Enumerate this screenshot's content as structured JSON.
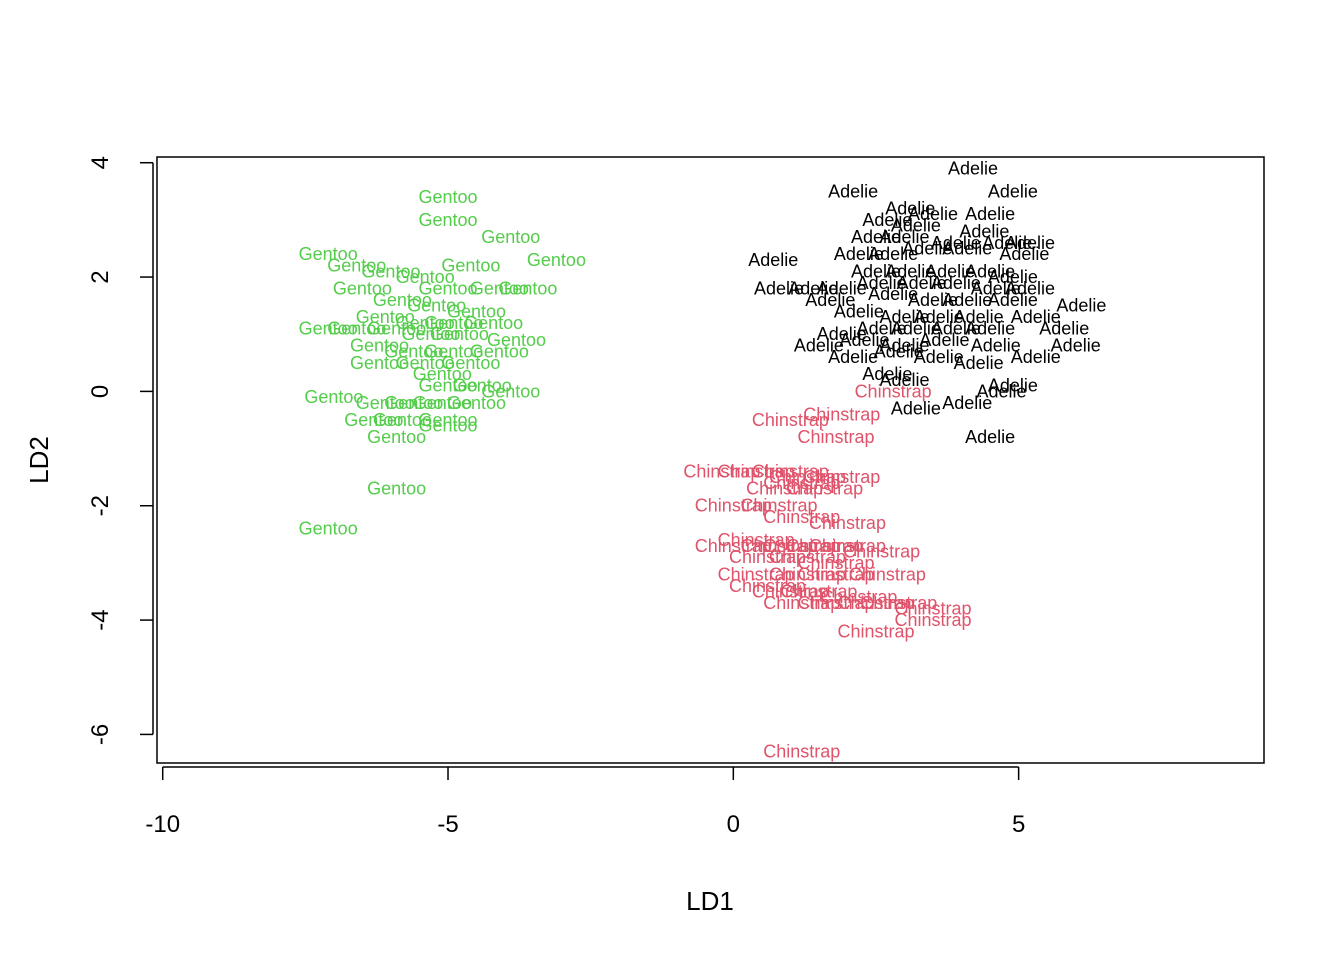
{
  "chart_data": {
    "type": "scatter",
    "title": "",
    "xlabel": "LD1",
    "ylabel": "LD2",
    "xlim": [
      -10.1,
      9.3
    ],
    "ylim": [
      -6.5,
      4.1
    ],
    "x_ticks": [
      -10,
      -5,
      0,
      5
    ],
    "y_ticks": [
      -6,
      -4,
      -2,
      0,
      2,
      4
    ],
    "x_tick_labels": [
      "-10",
      "-5",
      "0",
      "5"
    ],
    "y_tick_labels": [
      "-6",
      "-4",
      "-2",
      "0",
      "2",
      "4"
    ],
    "grid": false,
    "legend": "none",
    "series": [
      {
        "label": "Adelie",
        "color": "#000000",
        "points": [
          [
            4.2,
            3.9
          ],
          [
            2.1,
            3.5
          ],
          [
            4.9,
            3.5
          ],
          [
            3.1,
            3.2
          ],
          [
            3.5,
            3.1
          ],
          [
            4.5,
            3.1
          ],
          [
            2.7,
            3.0
          ],
          [
            3.2,
            2.9
          ],
          [
            4.4,
            2.8
          ],
          [
            2.5,
            2.7
          ],
          [
            3.0,
            2.7
          ],
          [
            3.9,
            2.6
          ],
          [
            4.8,
            2.6
          ],
          [
            5.2,
            2.6
          ],
          [
            0.7,
            2.3
          ],
          [
            2.2,
            2.4
          ],
          [
            2.8,
            2.4
          ],
          [
            3.4,
            2.5
          ],
          [
            4.1,
            2.5
          ],
          [
            5.1,
            2.4
          ],
          [
            2.5,
            2.1
          ],
          [
            3.1,
            2.1
          ],
          [
            3.8,
            2.1
          ],
          [
            4.5,
            2.1
          ],
          [
            4.9,
            2.0
          ],
          [
            1.4,
            1.8
          ],
          [
            1.9,
            1.8
          ],
          [
            2.6,
            1.9
          ],
          [
            3.3,
            1.9
          ],
          [
            3.9,
            1.9
          ],
          [
            4.6,
            1.8
          ],
          [
            5.2,
            1.8
          ],
          [
            0.8,
            1.8
          ],
          [
            1.7,
            1.6
          ],
          [
            2.8,
            1.7
          ],
          [
            3.5,
            1.6
          ],
          [
            4.1,
            1.6
          ],
          [
            4.9,
            1.6
          ],
          [
            6.1,
            1.5
          ],
          [
            2.2,
            1.4
          ],
          [
            3.0,
            1.3
          ],
          [
            3.6,
            1.3
          ],
          [
            4.3,
            1.3
          ],
          [
            5.3,
            1.3
          ],
          [
            1.9,
            1.0
          ],
          [
            2.6,
            1.1
          ],
          [
            3.2,
            1.1
          ],
          [
            3.9,
            1.1
          ],
          [
            4.5,
            1.1
          ],
          [
            5.8,
            1.1
          ],
          [
            1.5,
            0.8
          ],
          [
            2.3,
            0.9
          ],
          [
            3.0,
            0.8
          ],
          [
            3.7,
            0.9
          ],
          [
            4.6,
            0.8
          ],
          [
            6.0,
            0.8
          ],
          [
            2.1,
            0.6
          ],
          [
            2.9,
            0.7
          ],
          [
            3.6,
            0.6
          ],
          [
            4.3,
            0.5
          ],
          [
            5.3,
            0.6
          ],
          [
            2.7,
            0.3
          ],
          [
            3.0,
            0.2
          ],
          [
            4.1,
            -0.2
          ],
          [
            4.7,
            0.0
          ],
          [
            4.9,
            0.1
          ],
          [
            3.2,
            -0.3
          ],
          [
            4.5,
            -0.8
          ]
        ]
      },
      {
        "label": "Gentoo",
        "color": "#54cd4b",
        "points": [
          [
            -5.0,
            3.4
          ],
          [
            -5.0,
            3.0
          ],
          [
            -3.9,
            2.7
          ],
          [
            -7.1,
            2.4
          ],
          [
            -3.1,
            2.3
          ],
          [
            -6.6,
            2.2
          ],
          [
            -4.6,
            2.2
          ],
          [
            -6.0,
            2.1
          ],
          [
            -5.4,
            2.0
          ],
          [
            -6.5,
            1.8
          ],
          [
            -5.0,
            1.8
          ],
          [
            -4.1,
            1.8
          ],
          [
            -3.6,
            1.8
          ],
          [
            -5.8,
            1.6
          ],
          [
            -5.2,
            1.5
          ],
          [
            -4.5,
            1.4
          ],
          [
            -6.1,
            1.3
          ],
          [
            -5.4,
            1.2
          ],
          [
            -4.9,
            1.2
          ],
          [
            -4.2,
            1.2
          ],
          [
            -7.1,
            1.1
          ],
          [
            -6.6,
            1.1
          ],
          [
            -5.9,
            1.1
          ],
          [
            -5.3,
            1.0
          ],
          [
            -4.8,
            1.0
          ],
          [
            -3.8,
            0.9
          ],
          [
            -6.2,
            0.8
          ],
          [
            -5.6,
            0.7
          ],
          [
            -4.9,
            0.7
          ],
          [
            -4.1,
            0.7
          ],
          [
            -6.2,
            0.5
          ],
          [
            -5.4,
            0.5
          ],
          [
            -4.6,
            0.5
          ],
          [
            -5.1,
            0.3
          ],
          [
            -4.4,
            0.1
          ],
          [
            -5.0,
            0.1
          ],
          [
            -3.9,
            0.0
          ],
          [
            -7.0,
            -0.1
          ],
          [
            -6.1,
            -0.2
          ],
          [
            -5.6,
            -0.2
          ],
          [
            -5.1,
            -0.2
          ],
          [
            -4.5,
            -0.2
          ],
          [
            -6.3,
            -0.5
          ],
          [
            -5.8,
            -0.5
          ],
          [
            -5.0,
            -0.5
          ],
          [
            -5.0,
            -0.6
          ],
          [
            -5.9,
            -0.8
          ],
          [
            -5.9,
            -1.7
          ],
          [
            -7.1,
            -2.4
          ]
        ]
      },
      {
        "label": "Chinstrap",
        "color": "#df536b",
        "points": [
          [
            2.8,
            0.0
          ],
          [
            1.9,
            -0.4
          ],
          [
            1.0,
            -0.5
          ],
          [
            1.8,
            -0.8
          ],
          [
            -0.2,
            -1.4
          ],
          [
            0.4,
            -1.4
          ],
          [
            1.0,
            -1.4
          ],
          [
            1.3,
            -1.5
          ],
          [
            1.9,
            -1.5
          ],
          [
            1.2,
            -1.6
          ],
          [
            0.9,
            -1.7
          ],
          [
            1.6,
            -1.7
          ],
          [
            0.0,
            -2.0
          ],
          [
            0.8,
            -2.0
          ],
          [
            1.2,
            -2.2
          ],
          [
            2.0,
            -2.3
          ],
          [
            0.4,
            -2.6
          ],
          [
            0.0,
            -2.7
          ],
          [
            0.8,
            -2.7
          ],
          [
            1.2,
            -2.7
          ],
          [
            1.6,
            -2.7
          ],
          [
            2.0,
            -2.7
          ],
          [
            2.6,
            -2.8
          ],
          [
            0.6,
            -2.9
          ],
          [
            1.3,
            -2.9
          ],
          [
            1.8,
            -3.0
          ],
          [
            0.4,
            -3.2
          ],
          [
            1.3,
            -3.2
          ],
          [
            1.8,
            -3.2
          ],
          [
            2.7,
            -3.2
          ],
          [
            0.6,
            -3.4
          ],
          [
            1.0,
            -3.5
          ],
          [
            1.5,
            -3.5
          ],
          [
            2.2,
            -3.6
          ],
          [
            1.2,
            -3.7
          ],
          [
            1.8,
            -3.7
          ],
          [
            2.5,
            -3.7
          ],
          [
            2.9,
            -3.7
          ],
          [
            3.5,
            -3.8
          ],
          [
            3.5,
            -4.0
          ],
          [
            2.5,
            -4.2
          ],
          [
            1.2,
            -6.3
          ]
        ]
      }
    ]
  }
}
